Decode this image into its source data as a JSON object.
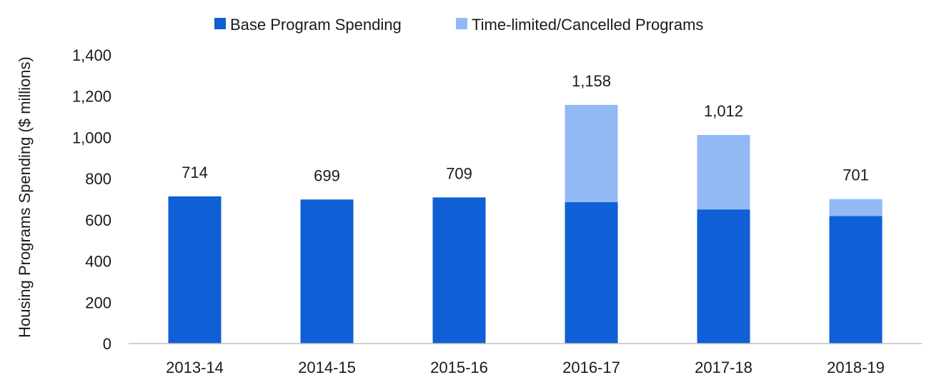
{
  "chart_data": {
    "type": "bar",
    "stacked": true,
    "categories": [
      "2013-14",
      "2014-15",
      "2015-16",
      "2016-17",
      "2017-18",
      "2018-19"
    ],
    "series": [
      {
        "name": "Base Program Spending",
        "color": "#0f5fd6",
        "values": [
          714,
          699,
          709,
          686,
          651,
          619
        ]
      },
      {
        "name": "Time-limited/Cancelled Programs",
        "color": "#93b9f5",
        "values": [
          0,
          0,
          0,
          472,
          361,
          82
        ]
      }
    ],
    "totals": [
      "714",
      "699",
      "709",
      "1,158",
      "1,012",
      "701"
    ],
    "ylabel": "Housing Programs Spending ($ millions)",
    "xlabel": "",
    "ylim": [
      0,
      1400
    ],
    "yticks": [
      0,
      200,
      400,
      600,
      800,
      1000,
      1200,
      1400
    ],
    "ytick_labels": [
      "0",
      "200",
      "400",
      "600",
      "800",
      "1,000",
      "1,200",
      "1,400"
    ],
    "grid": false,
    "legend_position": "top-center"
  }
}
